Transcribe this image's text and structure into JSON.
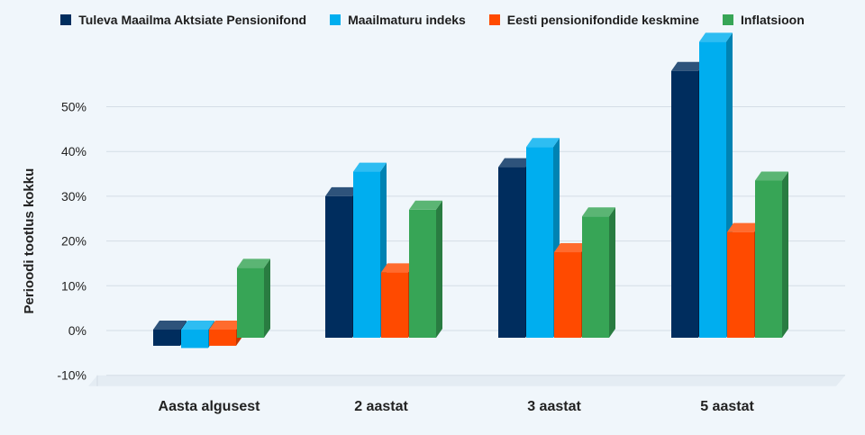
{
  "chart_data": {
    "type": "bar",
    "title": "",
    "xlabel": "",
    "ylabel": "Perioodi tootlus kokku",
    "categories": [
      "Aasta algusest",
      "2 aastat",
      "3 aastat",
      "5 aastat"
    ],
    "series": [
      {
        "name": "Tuleva Maailma Aktsiate Pensionifond",
        "color": "#002d5e",
        "values": [
          -2,
          30,
          36.5,
          58
        ]
      },
      {
        "name": "Maailmaturu indeks",
        "color": "#00aeef",
        "values": [
          -2.5,
          35.5,
          41,
          64.5
        ]
      },
      {
        "name": "Eesti pensionifondide keskmine",
        "color": "#ff4a00",
        "values": [
          -2,
          13,
          17.5,
          22
        ]
      },
      {
        "name": "Inflatsioon",
        "color": "#37a556",
        "values": [
          14,
          27,
          25.5,
          33.5
        ]
      }
    ],
    "ylim": [
      -10,
      70
    ],
    "yticks": [
      -10,
      0,
      10,
      20,
      30,
      40,
      50
    ],
    "ytick_labels": [
      "-10%",
      "0%",
      "10%",
      "20%",
      "30%",
      "40%",
      "50%"
    ],
    "grid": true,
    "legend_position": "top"
  }
}
